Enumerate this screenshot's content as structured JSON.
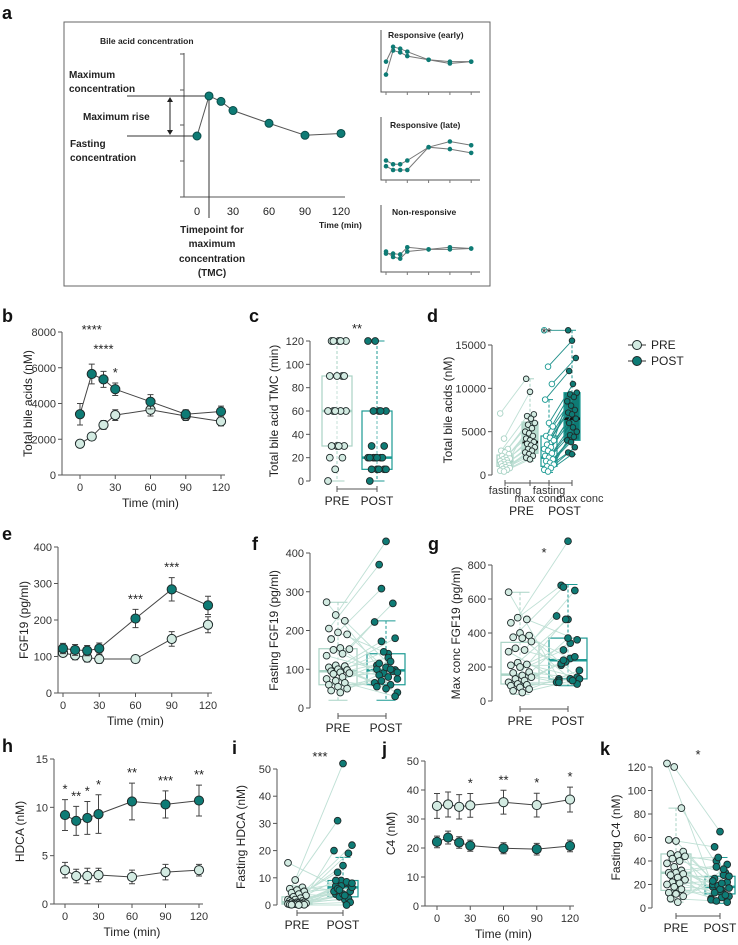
{
  "panel_labels": {
    "a": "a",
    "b": "b",
    "c": "c",
    "d": "d",
    "e": "e",
    "f": "f",
    "g": "g",
    "h": "h",
    "i": "i",
    "j": "j",
    "k": "k"
  },
  "legend": {
    "pre": "PRE",
    "post": "POST"
  },
  "colors": {
    "pre_fill": "#d3ebe2",
    "post_fill": "#0e7b75",
    "marker_stroke": "#1f2a2a",
    "pair_line": "#1f8f89",
    "pre_box": "#a9d3c5",
    "post_box": "#1c9a93",
    "line": "#444444"
  },
  "panel_a": {
    "y_title": "Bile acid concentration",
    "max_conc_1": "Maximum",
    "max_conc_2": "concentration",
    "max_rise": "Maximum rise",
    "fasting_1": "Fasting",
    "fasting_2": "concentration",
    "x_ticks": [
      "0",
      "30",
      "60",
      "90",
      "120"
    ],
    "x_label": "Time (min)",
    "tmc_1": "Timepoint for",
    "tmc_2": "maximum",
    "tmc_3": "concentration",
    "tmc_4": "(TMC)",
    "inset_early": "Responsive (early)",
    "inset_late": "Responsive (late)",
    "inset_non": "Non-responsive",
    "schematic_minutes": [
      0,
      10,
      20,
      30,
      60,
      90,
      120
    ],
    "schematic_level": [
      1.0,
      2.1,
      1.95,
      1.7,
      1.35,
      1.02,
      1.07
    ]
  },
  "chart_data": [
    {
      "id": "b",
      "type": "line",
      "ylabel": "Total bile acids (nM)",
      "xlabel": "Time (min)",
      "ylim": [
        0,
        8000
      ],
      "yticks": [
        0,
        2000,
        4000,
        6000,
        8000
      ],
      "xticks": [
        0,
        30,
        60,
        90,
        120
      ],
      "x": [
        0,
        10,
        20,
        30,
        60,
        90,
        120
      ],
      "series": [
        {
          "name": "PRE",
          "values": [
            1750,
            2150,
            2800,
            3350,
            3650,
            3300,
            3000
          ],
          "err": [
            200,
            200,
            250,
            300,
            350,
            250,
            250
          ]
        },
        {
          "name": "POST",
          "values": [
            3400,
            5650,
            5350,
            4800,
            4100,
            3400,
            3550
          ],
          "err": [
            600,
            550,
            450,
            350,
            400,
            250,
            300
          ]
        }
      ],
      "annotations": [
        {
          "x": 10,
          "text": "****",
          "level": 2
        },
        {
          "x": 20,
          "text": "****",
          "level": 1
        },
        {
          "x": 30,
          "text": "*",
          "level": 0
        }
      ]
    },
    {
      "id": "c",
      "type": "box",
      "ylabel": "Total bile acid TMC (min)",
      "ylim": [
        0,
        120
      ],
      "yticks": [
        0,
        20,
        40,
        60,
        80,
        100,
        120
      ],
      "categories": [
        "PRE",
        "POST"
      ],
      "paired": false,
      "annotation": "**",
      "boxes": [
        {
          "q1": 30,
          "median": 60,
          "q3": 90,
          "low": 0,
          "high": 120
        },
        {
          "q1": 10,
          "median": 20,
          "q3": 60,
          "low": 0,
          "high": 120
        }
      ],
      "points": [
        [
          0,
          10,
          20,
          20,
          30,
          30,
          30,
          30,
          60,
          60,
          60,
          60,
          60,
          90,
          90,
          90,
          90,
          120,
          120,
          120,
          120,
          120
        ],
        [
          0,
          10,
          10,
          10,
          10,
          10,
          20,
          20,
          20,
          20,
          20,
          20,
          20,
          30,
          30,
          60,
          60,
          60,
          60,
          120,
          120
        ]
      ]
    },
    {
      "id": "d",
      "type": "box",
      "ylabel": "Total bile acids (nM)",
      "ylim": [
        0,
        15000
      ],
      "yticks": [
        0,
        5000,
        10000,
        15000
      ],
      "categories": [
        "fasting",
        "max conc",
        "fasting",
        "max conc"
      ],
      "groups": [
        "PRE",
        "POST"
      ],
      "paired": true,
      "annotation": "**",
      "boxes": [
        {
          "q1": 1000,
          "median": 1500,
          "q3": 2300,
          "low": 300,
          "high": 3000
        },
        {
          "q1": 2500,
          "median": 3800,
          "q3": 6100,
          "low": 1600,
          "high": 11100
        },
        {
          "q1": 1000,
          "median": 2000,
          "q3": 4500,
          "low": 300,
          "high": 8700
        },
        {
          "q1": 4000,
          "median": 6500,
          "q3": 9500,
          "low": 2400,
          "high": 16700
        }
      ],
      "points": [
        [
          7100,
          4200,
          3000,
          2800,
          2600,
          2400,
          2200,
          2000,
          1900,
          1800,
          1700,
          1600,
          1500,
          1400,
          1300,
          1200,
          1100,
          1000,
          900,
          800,
          700,
          600,
          500,
          400
        ],
        [
          11100,
          9600,
          7000,
          6800,
          6500,
          6000,
          5800,
          5400,
          5000,
          4800,
          4500,
          4200,
          4000,
          3800,
          3600,
          3400,
          3200,
          3000,
          2800,
          2600,
          2400,
          2200,
          2000,
          1800
        ],
        [
          16700,
          12500,
          10500,
          8700,
          6000,
          5600,
          4500,
          4300,
          4000,
          3500,
          3200,
          3000,
          2800,
          2500,
          2200,
          2000,
          1800,
          1600,
          1400,
          1200,
          1000,
          800,
          600,
          400
        ],
        [
          16700,
          15500,
          13500,
          12000,
          10500,
          9500,
          9300,
          9000,
          8500,
          8000,
          7500,
          7200,
          7000,
          6500,
          6000,
          5500,
          5000,
          4600,
          4400,
          4000,
          3800,
          3200,
          2600,
          2400
        ]
      ]
    },
    {
      "id": "e",
      "type": "line",
      "ylabel": "FGF19 (pg/ml)",
      "xlabel": "Time (min)",
      "ylim": [
        0,
        400
      ],
      "yticks": [
        0,
        100,
        200,
        300,
        400
      ],
      "xticks": [
        0,
        30,
        60,
        90,
        120
      ],
      "x": [
        0,
        10,
        20,
        30,
        60,
        90,
        120
      ],
      "series": [
        {
          "name": "PRE",
          "values": [
            110,
            103,
            97,
            93,
            93,
            148,
            187
          ],
          "err": [
            10,
            12,
            12,
            12,
            10,
            20,
            22
          ]
        },
        {
          "name": "POST",
          "values": [
            122,
            118,
            116,
            122,
            204,
            284,
            240
          ],
          "err": [
            14,
            15,
            14,
            15,
            25,
            32,
            25
          ]
        }
      ],
      "annotations": [
        {
          "x": 60,
          "text": "***",
          "level": 0
        },
        {
          "x": 90,
          "text": "***",
          "level": 0
        }
      ]
    },
    {
      "id": "f",
      "type": "box",
      "ylabel": "Fasting FGF19 (pg/ml)",
      "ylim": [
        0,
        400
      ],
      "yticks": [
        0,
        100,
        200,
        300,
        400
      ],
      "categories": [
        "PRE",
        "POST"
      ],
      "paired": true,
      "annotation": "",
      "boxes": [
        {
          "q1": 60,
          "median": 95,
          "q3": 153,
          "low": 20,
          "high": 273
        },
        {
          "q1": 60,
          "median": 97,
          "q3": 140,
          "low": 20,
          "high": 225
        }
      ],
      "points": [
        [
          273,
          240,
          225,
          205,
          195,
          190,
          178,
          155,
          152,
          150,
          140,
          135,
          110,
          108,
          105,
          100,
          98,
          95,
          92,
          90,
          88,
          80,
          75,
          70,
          65,
          60,
          55,
          50,
          45,
          40
        ],
        [
          110,
          430,
          98,
          370,
          140,
          75,
          308,
          60,
          222,
          90,
          270,
          100,
          50,
          180,
          85,
          130,
          40,
          172,
          120,
          65,
          145,
          95,
          55,
          105,
          30,
          115,
          80,
          92,
          70,
          100
        ]
      ]
    },
    {
      "id": "g",
      "type": "box",
      "ylabel": "Max conc FGF19 (pg/ml)",
      "ylim": [
        0,
        800
      ],
      "yticks": [
        0,
        200,
        400,
        600,
        800
      ],
      "categories": [
        "PRE",
        "POST"
      ],
      "paired": true,
      "annotation": "*",
      "boxes": [
        {
          "q1": 100,
          "median": 155,
          "q3": 345,
          "low": 40,
          "high": 640
        },
        {
          "q1": 130,
          "median": 240,
          "q3": 370,
          "low": 90,
          "high": 685
        }
      ],
      "points": [
        [
          640,
          490,
          480,
          460,
          400,
          385,
          375,
          370,
          350,
          310,
          300,
          290,
          225,
          215,
          210,
          200,
          170,
          165,
          150,
          140,
          130,
          120,
          110,
          100,
          95,
          90,
          80,
          70,
          60,
          50
        ],
        [
          130,
          940,
          360,
          680,
          250,
          130,
          670,
          120,
          500,
          230,
          650,
          120,
          480,
          140,
          210,
          340,
          130,
          300,
          120,
          110,
          480,
          260,
          110,
          370,
          100,
          220,
          130,
          180,
          240,
          120
        ]
      ]
    },
    {
      "id": "h",
      "type": "line",
      "ylabel": "HDCA (nM)",
      "xlabel": "Time (min)",
      "ylim": [
        0,
        15
      ],
      "yticks": [
        0,
        5,
        10,
        15
      ],
      "xticks": [
        0,
        30,
        60,
        90,
        120
      ],
      "x": [
        0,
        10,
        20,
        30,
        60,
        90,
        120
      ],
      "series": [
        {
          "name": "PRE",
          "values": [
            3.5,
            2.9,
            2.9,
            3.0,
            2.8,
            3.3,
            3.5
          ],
          "err": [
            0.8,
            0.7,
            0.8,
            0.7,
            0.7,
            0.8,
            0.6
          ]
        },
        {
          "name": "POST",
          "values": [
            9.2,
            8.6,
            8.9,
            9.3,
            10.6,
            10.3,
            10.7
          ],
          "err": [
            1.6,
            1.5,
            1.7,
            2.0,
            1.9,
            1.4,
            1.6
          ]
        }
      ],
      "annotations": [
        {
          "x": 0,
          "text": "*",
          "level": 0
        },
        {
          "x": 10,
          "text": "**",
          "level": 0
        },
        {
          "x": 20,
          "text": "*",
          "level": 0
        },
        {
          "x": 30,
          "text": "*",
          "level": 0
        },
        {
          "x": 60,
          "text": "**",
          "level": 0
        },
        {
          "x": 90,
          "text": "***",
          "level": 0
        },
        {
          "x": 120,
          "text": "**",
          "level": 0
        }
      ]
    },
    {
      "id": "i",
      "type": "box",
      "ylabel": "Fasting HDCA (nM)",
      "ylim": [
        0,
        50
      ],
      "yticks": [
        0,
        10,
        20,
        30,
        40,
        50
      ],
      "categories": [
        "PRE",
        "POST"
      ],
      "paired": true,
      "annotation": "***",
      "boxes": [
        {
          "q1": 0.3,
          "median": 1,
          "q3": 3,
          "low": 0,
          "high": 7
        },
        {
          "q1": 3,
          "median": 6.5,
          "q3": 9,
          "low": 0,
          "high": 17.5
        }
      ],
      "points": [
        [
          15.5,
          9.2,
          6.5,
          6,
          5.5,
          5,
          4.5,
          4,
          3.5,
          3,
          2.5,
          2,
          2,
          1.5,
          1.5,
          1,
          1,
          1,
          0.8,
          0.6,
          0.5,
          0.5,
          0.4,
          0.3,
          0.3,
          0.2,
          0.2,
          0.1,
          0.1,
          0
        ],
        [
          7,
          52,
          5,
          31,
          8,
          22,
          6,
          3,
          20,
          9,
          19,
          4,
          14.5,
          7.5,
          12,
          2,
          6.5,
          3,
          8.5,
          5,
          7,
          2.5,
          9,
          4,
          1,
          6,
          3.5,
          8,
          5.5,
          0
        ]
      ]
    },
    {
      "id": "j",
      "type": "line",
      "ylabel": "C4 (nM)",
      "xlabel": "Time (min)",
      "ylim": [
        0,
        50
      ],
      "yticks": [
        0,
        10,
        20,
        30,
        40,
        50
      ],
      "xticks": [
        0,
        30,
        60,
        90,
        120
      ],
      "x": [
        0,
        10,
        20,
        30,
        60,
        90,
        120
      ],
      "series": [
        {
          "name": "PRE",
          "values": [
            34.5,
            35,
            34.2,
            34.7,
            35.8,
            34.8,
            36.7
          ],
          "err": [
            4.3,
            4.3,
            4.2,
            4.1,
            4.1,
            4.1,
            4.3
          ]
        },
        {
          "name": "POST",
          "values": [
            22.1,
            23.6,
            21.9,
            20.8,
            19.9,
            19.6,
            20.7
          ],
          "err": [
            2,
            2.2,
            2,
            1.9,
            1.9,
            2,
            2
          ]
        }
      ],
      "annotations": [
        {
          "x": 30,
          "text": "*",
          "level": 0
        },
        {
          "x": 60,
          "text": "**",
          "level": 0
        },
        {
          "x": 90,
          "text": "*",
          "level": 0
        },
        {
          "x": 120,
          "text": "*",
          "level": 0
        }
      ]
    },
    {
      "id": "k",
      "type": "box",
      "ylabel": "Fasting C4 (nM)",
      "ylim": [
        0,
        120
      ],
      "yticks": [
        0,
        20,
        40,
        60,
        80,
        100,
        120
      ],
      "categories": [
        "PRE",
        "POST"
      ],
      "paired": true,
      "annotation": "*",
      "boxes": [
        {
          "q1": 15,
          "median": 30,
          "q3": 46,
          "low": 5,
          "high": 85
        },
        {
          "q1": 12,
          "median": 18,
          "q3": 27,
          "low": 4,
          "high": 43
        }
      ],
      "points": [
        [
          123,
          120,
          85,
          58,
          57,
          48,
          46,
          45,
          44,
          42,
          40,
          38,
          35,
          32,
          30,
          30,
          29,
          28,
          26,
          24,
          22,
          21,
          20,
          18,
          16,
          13,
          12,
          10,
          8,
          5
        ],
        [
          18,
          65,
          22,
          52,
          15,
          10,
          40,
          12,
          8,
          43,
          30,
          20,
          14,
          37,
          25,
          9,
          17,
          35,
          28,
          7,
          19,
          11,
          23,
          16,
          5,
          13,
          21,
          27,
          6,
          33
        ]
      ]
    }
  ]
}
